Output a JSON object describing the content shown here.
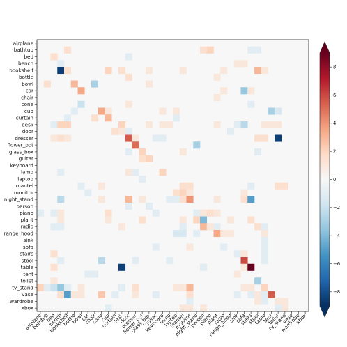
{
  "chart_data": {
    "type": "heatmap",
    "title": "",
    "xlabel": "",
    "ylabel": "",
    "categories": [
      "airplane",
      "bathtub",
      "bed",
      "bench",
      "bookshelf",
      "bottle",
      "bowl",
      "car",
      "chair",
      "cone",
      "cup",
      "curtain",
      "desk",
      "door",
      "dresser",
      "flower_pot",
      "glass_box",
      "guitar",
      "keyboard",
      "lamp",
      "laptop",
      "mantel",
      "monitor",
      "night_stand",
      "person",
      "piano",
      "plant",
      "radio",
      "range_hood",
      "sink",
      "sofa",
      "stairs",
      "stool",
      "table",
      "tent",
      "toilet",
      "tv_stand",
      "vase",
      "wardrobe",
      "xbox"
    ],
    "colorbar": {
      "min": -9,
      "max": 9,
      "ticks": [
        -8,
        -6,
        -4,
        -2,
        0,
        2,
        4,
        6,
        8
      ],
      "tick_labels": [
        "−8",
        "−6",
        "−4",
        "−2",
        "0",
        "2",
        "4",
        "6",
        "8"
      ],
      "colormap": "RdBu_r",
      "extend": "both"
    },
    "grid": false,
    "cells": [
      [
        1,
        4,
        1.5
      ],
      [
        1,
        24,
        1.5
      ],
      [
        1,
        25,
        2
      ],
      [
        1,
        31,
        -1
      ],
      [
        1,
        32,
        -1
      ],
      [
        2,
        2,
        1.5
      ],
      [
        2,
        13,
        -1
      ],
      [
        3,
        3,
        -1
      ],
      [
        3,
        29,
        1
      ],
      [
        3,
        30,
        1
      ],
      [
        4,
        3,
        -8.5
      ],
      [
        4,
        4,
        1.5
      ],
      [
        4,
        10,
        2
      ],
      [
        4,
        12,
        1.5
      ],
      [
        4,
        16,
        1
      ],
      [
        4,
        21,
        1
      ],
      [
        4,
        27,
        1
      ],
      [
        4,
        32,
        3
      ],
      [
        4,
        33,
        1
      ],
      [
        5,
        13,
        1.5
      ],
      [
        5,
        26,
        1
      ],
      [
        6,
        1,
        1.5
      ],
      [
        6,
        5,
        3
      ],
      [
        6,
        8,
        -3
      ],
      [
        6,
        16,
        1
      ],
      [
        7,
        6,
        3.5
      ],
      [
        7,
        27,
        1
      ],
      [
        7,
        30,
        -3.5
      ],
      [
        7,
        31,
        1
      ],
      [
        8,
        26,
        1
      ],
      [
        9,
        6,
        -2
      ],
      [
        9,
        13,
        1
      ],
      [
        9,
        31,
        -1
      ],
      [
        10,
        5,
        -1
      ],
      [
        10,
        9,
        3.5
      ],
      [
        10,
        10,
        1
      ],
      [
        10,
        18,
        1
      ],
      [
        10,
        20,
        1
      ],
      [
        10,
        34,
        -3
      ],
      [
        10,
        35,
        -1.5
      ],
      [
        11,
        4,
        -1
      ],
      [
        11,
        8,
        1.5
      ],
      [
        11,
        10,
        3
      ],
      [
        11,
        20,
        -1
      ],
      [
        12,
        2,
        -1
      ],
      [
        12,
        3,
        2
      ],
      [
        12,
        4,
        2
      ],
      [
        12,
        12,
        2
      ],
      [
        12,
        16,
        1
      ],
      [
        12,
        18,
        1
      ],
      [
        12,
        19,
        1
      ],
      [
        12,
        26,
        1
      ],
      [
        12,
        29,
        -1
      ],
      [
        12,
        30,
        -2.5
      ],
      [
        12,
        33,
        1
      ],
      [
        12,
        34,
        1
      ],
      [
        12,
        35,
        1
      ],
      [
        13,
        11,
        1.5
      ],
      [
        13,
        12,
        1
      ],
      [
        13,
        13,
        -1
      ],
      [
        13,
        28,
        -1
      ],
      [
        14,
        2,
        1
      ],
      [
        14,
        3,
        1.5
      ],
      [
        14,
        4,
        1
      ],
      [
        14,
        13,
        5.5
      ],
      [
        14,
        14,
        1
      ],
      [
        14,
        17,
        -1
      ],
      [
        14,
        18,
        -1
      ],
      [
        14,
        32,
        1.5
      ],
      [
        14,
        33,
        1.5
      ],
      [
        14,
        35,
        -8.5
      ],
      [
        15,
        14,
        5
      ],
      [
        15,
        23,
        -3
      ],
      [
        16,
        13,
        -1
      ],
      [
        16,
        15,
        2
      ],
      [
        16,
        21,
        1
      ],
      [
        16,
        32,
        -1
      ],
      [
        17,
        15,
        1.5
      ],
      [
        17,
        16,
        2
      ],
      [
        19,
        3,
        -1
      ],
      [
        19,
        13,
        1
      ],
      [
        19,
        14,
        -1
      ],
      [
        19,
        18,
        2
      ],
      [
        20,
        15,
        -1
      ],
      [
        21,
        6,
        -1
      ],
      [
        21,
        9,
        1
      ],
      [
        21,
        21,
        1.5
      ],
      [
        21,
        22,
        1.5
      ],
      [
        21,
        31,
        -1
      ],
      [
        21,
        35,
        1.5
      ],
      [
        21,
        36,
        1.5
      ],
      [
        22,
        7,
        -1
      ],
      [
        22,
        20,
        1.5
      ],
      [
        22,
        21,
        2
      ],
      [
        22,
        22,
        1
      ],
      [
        22,
        30,
        1
      ],
      [
        23,
        3,
        -2.5
      ],
      [
        23,
        9,
        1
      ],
      [
        23,
        13,
        3
      ],
      [
        23,
        15,
        1
      ],
      [
        23,
        19,
        -1
      ],
      [
        23,
        20,
        -1
      ],
      [
        23,
        21,
        1.5
      ],
      [
        23,
        22,
        4
      ],
      [
        23,
        26,
        1
      ],
      [
        23,
        30,
        1.5
      ],
      [
        23,
        31,
        -5
      ],
      [
        24,
        13,
        -1
      ],
      [
        24,
        16,
        -1
      ],
      [
        25,
        0,
        -1
      ],
      [
        25,
        2,
        -1
      ],
      [
        25,
        3,
        1
      ],
      [
        25,
        10,
        1.5
      ],
      [
        25,
        17,
        -1
      ],
      [
        25,
        23,
        -1
      ],
      [
        25,
        24,
        1
      ],
      [
        25,
        25,
        1.5
      ],
      [
        25,
        26,
        1
      ],
      [
        26,
        3,
        1
      ],
      [
        26,
        10,
        1
      ],
      [
        26,
        15,
        1.5
      ],
      [
        26,
        21,
        1
      ],
      [
        26,
        23,
        2
      ],
      [
        26,
        24,
        -4
      ],
      [
        26,
        28,
        1
      ],
      [
        26,
        31,
        1.5
      ],
      [
        27,
        2,
        -1
      ],
      [
        27,
        3,
        -1
      ],
      [
        27,
        12,
        1
      ],
      [
        27,
        21,
        -1
      ],
      [
        27,
        24,
        3
      ],
      [
        27,
        25,
        1
      ],
      [
        27,
        26,
        -1
      ],
      [
        27,
        32,
        1.5
      ],
      [
        27,
        33,
        -1
      ],
      [
        28,
        20,
        -1.5
      ],
      [
        28,
        21,
        -1.5
      ],
      [
        28,
        23,
        -1
      ],
      [
        28,
        26,
        3.5
      ],
      [
        28,
        27,
        1
      ],
      [
        28,
        28,
        1
      ],
      [
        28,
        33,
        1
      ],
      [
        29,
        33,
        -1
      ],
      [
        30,
        17,
        -1
      ],
      [
        30,
        22,
        1
      ],
      [
        30,
        27,
        -1
      ],
      [
        30,
        33,
        -1
      ],
      [
        31,
        2,
        1.5
      ],
      [
        31,
        29,
        -1
      ],
      [
        31,
        30,
        1
      ],
      [
        31,
        33,
        -1
      ],
      [
        32,
        3,
        -1
      ],
      [
        32,
        9,
        -2.5
      ],
      [
        32,
        14,
        -1
      ],
      [
        32,
        19,
        -1
      ],
      [
        32,
        30,
        6
      ],
      [
        32,
        33,
        -1
      ],
      [
        33,
        2,
        1.5
      ],
      [
        33,
        12,
        -8.5
      ],
      [
        33,
        24,
        -1
      ],
      [
        33,
        30,
        1
      ],
      [
        33,
        31,
        9
      ],
      [
        34,
        7,
        -1
      ],
      [
        34,
        8,
        -1
      ],
      [
        34,
        29,
        1
      ],
      [
        35,
        2,
        1
      ],
      [
        35,
        32,
        -3
      ],
      [
        36,
        0,
        2
      ],
      [
        36,
        1,
        -1
      ],
      [
        36,
        2,
        -2
      ],
      [
        36,
        3,
        -3.5
      ],
      [
        36,
        4,
        -1
      ],
      [
        36,
        6,
        1
      ],
      [
        36,
        12,
        -1
      ],
      [
        36,
        14,
        1.5
      ],
      [
        36,
        20,
        1
      ],
      [
        36,
        21,
        1
      ],
      [
        36,
        22,
        3
      ],
      [
        36,
        30,
        1
      ],
      [
        36,
        31,
        1
      ],
      [
        36,
        33,
        2
      ],
      [
        37,
        3,
        1.5
      ],
      [
        37,
        4,
        -5
      ],
      [
        37,
        5,
        1
      ],
      [
        37,
        6,
        1
      ],
      [
        37,
        9,
        2.5
      ],
      [
        37,
        11,
        -1
      ],
      [
        37,
        14,
        1
      ],
      [
        37,
        17,
        -1
      ],
      [
        37,
        22,
        1.5
      ],
      [
        37,
        29,
        -1
      ],
      [
        37,
        31,
        -1
      ],
      [
        37,
        32,
        1
      ],
      [
        37,
        33,
        -1
      ],
      [
        37,
        34,
        5.5
      ],
      [
        38,
        22,
        -1
      ],
      [
        38,
        32,
        1
      ],
      [
        38,
        33,
        -1
      ],
      [
        38,
        35,
        1
      ],
      [
        38,
        36,
        1
      ],
      [
        39,
        10,
        -1
      ],
      [
        39,
        21,
        1
      ],
      [
        39,
        22,
        1
      ],
      [
        39,
        24,
        1
      ],
      [
        39,
        35,
        -1
      ],
      [
        39,
        36,
        1
      ]
    ]
  }
}
